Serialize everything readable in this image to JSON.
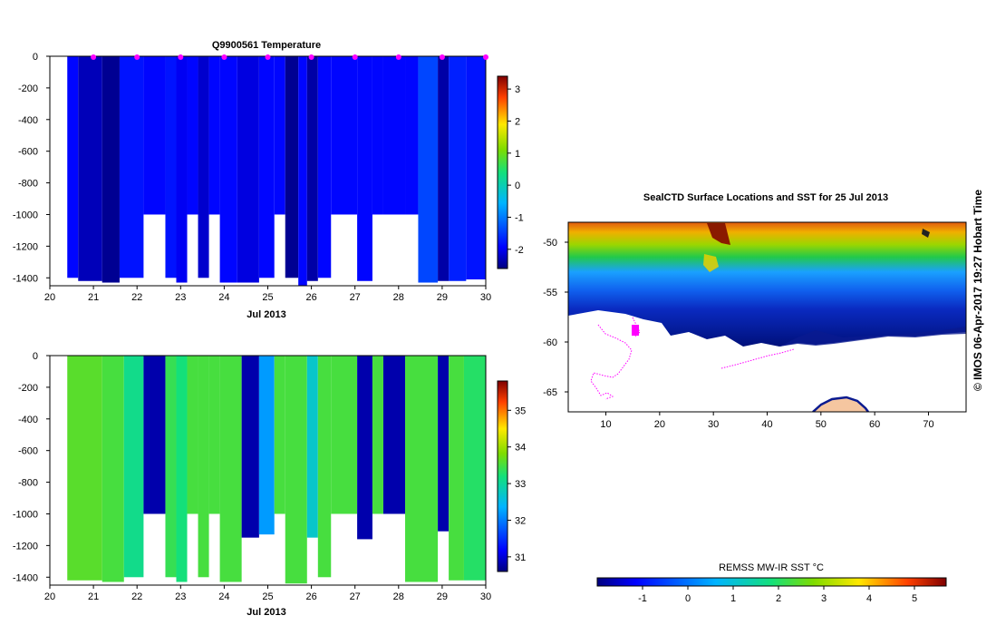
{
  "chart_data": [
    {
      "type": "heatmap",
      "title": "Q9900561  Temperature",
      "xlabel": "Jul 2013",
      "ylabel": "",
      "xlim": [
        20,
        30
      ],
      "ylim": [
        -1450,
        0
      ],
      "x_ticks": [
        "20",
        "21",
        "22",
        "23",
        "24",
        "25",
        "26",
        "27",
        "28",
        "29",
        "30"
      ],
      "y_ticks": [
        "0",
        "-200",
        "-400",
        "-600",
        "-800",
        "-1000",
        "-1200",
        "-1400"
      ],
      "colorbar": {
        "min": -2.6,
        "max": 3.4,
        "ticks": [
          "3",
          "2",
          "1",
          "0",
          "-1",
          "-2"
        ]
      },
      "surface_marker_days": [
        21,
        22,
        23,
        24,
        25,
        26,
        27,
        28,
        29,
        30
      ],
      "profiles": [
        {
          "x0": 20.4,
          "x1": 20.65,
          "depth": 1400,
          "value": -1.9
        },
        {
          "x0": 20.65,
          "x1": 21.2,
          "depth": 1420,
          "value": -2.3
        },
        {
          "x0": 21.2,
          "x1": 21.6,
          "depth": 1430,
          "value": -2.5
        },
        {
          "x0": 21.6,
          "x1": 22.15,
          "depth": 1400,
          "value": -1.8
        },
        {
          "x0": 22.15,
          "x1": 22.65,
          "depth": 1000,
          "value": -1.9
        },
        {
          "x0": 22.65,
          "x1": 22.9,
          "depth": 1400,
          "value": -1.8
        },
        {
          "x0": 22.9,
          "x1": 23.15,
          "depth": 1430,
          "value": -2.0
        },
        {
          "x0": 23.15,
          "x1": 23.4,
          "depth": 1000,
          "value": -1.9
        },
        {
          "x0": 23.4,
          "x1": 23.65,
          "depth": 1400,
          "value": -2.2
        },
        {
          "x0": 23.65,
          "x1": 23.9,
          "depth": 1000,
          "value": -1.9
        },
        {
          "x0": 23.9,
          "x1": 24.3,
          "depth": 1430,
          "value": -1.9
        },
        {
          "x0": 24.3,
          "x1": 24.8,
          "depth": 1430,
          "value": -2.1
        },
        {
          "x0": 24.8,
          "x1": 25.15,
          "depth": 1400,
          "value": -1.9
        },
        {
          "x0": 25.15,
          "x1": 25.4,
          "depth": 1000,
          "value": -1.9
        },
        {
          "x0": 25.4,
          "x1": 25.7,
          "depth": 1400,
          "value": -2.5
        },
        {
          "x0": 25.7,
          "x1": 25.9,
          "depth": 1450,
          "value": -1.9
        },
        {
          "x0": 25.9,
          "x1": 26.15,
          "depth": 1420,
          "value": -2.4
        },
        {
          "x0": 26.15,
          "x1": 26.45,
          "depth": 1400,
          "value": -1.9
        },
        {
          "x0": 26.45,
          "x1": 27.05,
          "depth": 1000,
          "value": -1.9
        },
        {
          "x0": 27.05,
          "x1": 27.4,
          "depth": 1420,
          "value": -1.9
        },
        {
          "x0": 27.4,
          "x1": 27.65,
          "depth": 1000,
          "value": -1.9
        },
        {
          "x0": 27.65,
          "x1": 28.15,
          "depth": 1000,
          "value": -1.9
        },
        {
          "x0": 28.15,
          "x1": 28.45,
          "depth": 1000,
          "value": -1.9
        },
        {
          "x0": 28.45,
          "x1": 28.9,
          "depth": 1430,
          "value": -1.4
        },
        {
          "x0": 28.9,
          "x1": 29.15,
          "depth": 1420,
          "value": -2.4
        },
        {
          "x0": 29.15,
          "x1": 29.55,
          "depth": 1420,
          "value": -1.7
        },
        {
          "x0": 29.55,
          "x1": 30.0,
          "depth": 1410,
          "value": -1.8
        }
      ]
    },
    {
      "type": "heatmap",
      "title": "",
      "xlabel": "Jul 2013",
      "ylabel": "",
      "xlim": [
        20,
        30
      ],
      "ylim": [
        -1450,
        0
      ],
      "x_ticks": [
        "20",
        "21",
        "22",
        "23",
        "24",
        "25",
        "26",
        "27",
        "28",
        "29",
        "30"
      ],
      "y_ticks": [
        "0",
        "-200",
        "-400",
        "-600",
        "-800",
        "-1000",
        "-1200",
        "-1400"
      ],
      "colorbar": {
        "min": 30.6,
        "max": 35.8,
        "ticks": [
          "35",
          "34",
          "33",
          "32",
          "31"
        ]
      },
      "profiles": [
        {
          "x0": 20.4,
          "x1": 21.2,
          "depth": 1420,
          "value": 33.6
        },
        {
          "x0": 21.2,
          "x1": 21.7,
          "depth": 1430,
          "value": 33.5
        },
        {
          "x0": 21.7,
          "x1": 22.15,
          "depth": 1400,
          "value": 33.1
        },
        {
          "x0": 22.15,
          "x1": 22.65,
          "depth": 1000,
          "value": 30.8
        },
        {
          "x0": 22.65,
          "x1": 22.9,
          "depth": 1400,
          "value": 33.4
        },
        {
          "x0": 22.9,
          "x1": 23.15,
          "depth": 1430,
          "value": 33.2
        },
        {
          "x0": 23.15,
          "x1": 23.4,
          "depth": 1000,
          "value": 33.5
        },
        {
          "x0": 23.4,
          "x1": 23.65,
          "depth": 1400,
          "value": 33.5
        },
        {
          "x0": 23.65,
          "x1": 23.9,
          "depth": 1000,
          "value": 33.5
        },
        {
          "x0": 23.9,
          "x1": 24.4,
          "depth": 1430,
          "value": 33.5
        },
        {
          "x0": 24.4,
          "x1": 24.8,
          "depth": 1150,
          "value": 30.8
        },
        {
          "x0": 24.8,
          "x1": 25.15,
          "depth": 1130,
          "value": 32.2
        },
        {
          "x0": 25.15,
          "x1": 25.4,
          "depth": 1000,
          "value": 33.5
        },
        {
          "x0": 25.4,
          "x1": 25.9,
          "depth": 1440,
          "value": 33.5
        },
        {
          "x0": 25.9,
          "x1": 26.15,
          "depth": 1150,
          "value": 32.7
        },
        {
          "x0": 26.15,
          "x1": 26.45,
          "depth": 1400,
          "value": 33.5
        },
        {
          "x0": 26.45,
          "x1": 27.05,
          "depth": 1000,
          "value": 33.5
        },
        {
          "x0": 27.05,
          "x1": 27.4,
          "depth": 1160,
          "value": 30.8
        },
        {
          "x0": 27.4,
          "x1": 27.65,
          "depth": 1000,
          "value": 33.5
        },
        {
          "x0": 27.65,
          "x1": 28.15,
          "depth": 1000,
          "value": 30.8
        },
        {
          "x0": 28.15,
          "x1": 28.9,
          "depth": 1430,
          "value": 33.5
        },
        {
          "x0": 28.9,
          "x1": 29.15,
          "depth": 1110,
          "value": 30.8
        },
        {
          "x0": 29.15,
          "x1": 29.5,
          "depth": 1420,
          "value": 33.5
        },
        {
          "x0": 29.5,
          "x1": 30.0,
          "depth": 1420,
          "value": 33.3
        }
      ]
    },
    {
      "type": "heatmap",
      "title": "SealCTD Surface Locations and SST for 25 Jul 2013",
      "xlabel": "",
      "ylabel": "",
      "xlim": [
        3,
        77
      ],
      "ylim": [
        -67,
        -48
      ],
      "x_ticks": [
        "10",
        "20",
        "30",
        "40",
        "50",
        "60",
        "70"
      ],
      "y_ticks": [
        "-50",
        "-55",
        "-60",
        "-65"
      ],
      "colorbar": {
        "label": "REMSS MW-IR SST °C",
        "min": -2,
        "max": 5.7,
        "ticks": [
          "-1",
          "0",
          "1",
          "2",
          "3",
          "4",
          "5"
        ]
      },
      "side_label": "© IMOS 06-Apr-2017 19:27 Hobart Time"
    }
  ]
}
